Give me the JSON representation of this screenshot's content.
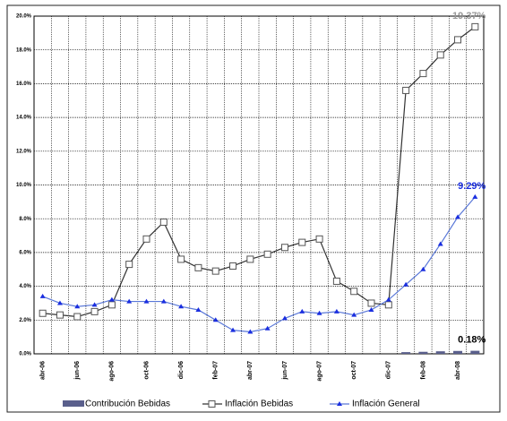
{
  "chart_data": {
    "type": "line",
    "categories": [
      "abr-06",
      null,
      "jun-06",
      null,
      "ago-06",
      null,
      "oct-06",
      null,
      "dic-06",
      null,
      "feb-07",
      null,
      "abr-07",
      null,
      "jun-07",
      null,
      "ago-07",
      null,
      "oct-07",
      null,
      "dic-07",
      null,
      "feb-08",
      null,
      "abr-08",
      null
    ],
    "series": [
      {
        "name": "Contribución Bebidas",
        "type": "bar",
        "color": "#5a5f8c",
        "label_color": "#000000",
        "values": [
          0,
          0,
          0,
          0,
          0,
          0,
          0,
          0,
          0,
          0,
          0,
          0,
          0,
          0,
          0,
          0,
          0,
          0,
          0,
          0,
          0,
          0.1,
          0.12,
          0.15,
          0.17,
          0.18
        ],
        "value_labels": [
          null,
          null,
          null,
          null,
          null,
          null,
          null,
          null,
          null,
          null,
          null,
          null,
          null,
          null,
          null,
          null,
          null,
          null,
          null,
          null,
          null,
          null,
          null,
          null,
          null,
          "0.18%"
        ]
      },
      {
        "name": "Inflación Bebidas",
        "type": "line",
        "marker": "square",
        "color": "#333333",
        "label_color": "#999999",
        "values": [
          2.4,
          2.3,
          2.2,
          2.5,
          2.9,
          5.3,
          6.8,
          7.8,
          5.6,
          5.1,
          4.9,
          5.2,
          5.6,
          5.9,
          6.3,
          6.6,
          6.8,
          4.3,
          3.7,
          3.0,
          2.9,
          15.6,
          16.6,
          17.7,
          18.6,
          19.37
        ],
        "value_labels": [
          null,
          null,
          null,
          null,
          null,
          null,
          null,
          null,
          null,
          null,
          null,
          null,
          null,
          null,
          null,
          null,
          null,
          null,
          null,
          null,
          null,
          null,
          null,
          null,
          null,
          "19.37%"
        ]
      },
      {
        "name": "Inflación General",
        "type": "line",
        "marker": "triangle",
        "color": "#5a78d8",
        "label_color": "#1a2ee0",
        "values": [
          3.4,
          3.0,
          2.8,
          2.9,
          3.2,
          3.1,
          3.1,
          3.1,
          2.8,
          2.6,
          2.0,
          1.4,
          1.3,
          1.5,
          2.1,
          2.5,
          2.4,
          2.5,
          2.3,
          2.6,
          3.2,
          4.1,
          5.0,
          6.5,
          8.1,
          9.29
        ],
        "value_labels": [
          null,
          null,
          null,
          null,
          null,
          null,
          null,
          null,
          null,
          null,
          null,
          null,
          null,
          null,
          null,
          null,
          null,
          null,
          null,
          null,
          null,
          null,
          null,
          null,
          null,
          "9.29%"
        ]
      }
    ],
    "ylim": [
      0,
      20
    ],
    "yticks": [
      {
        "value": 0,
        "label": "0.0%"
      },
      {
        "value": 2,
        "label": "2.0%"
      },
      {
        "value": 4,
        "label": "4.0%"
      },
      {
        "value": 6,
        "label": "6.0%"
      },
      {
        "value": 8,
        "label": "8.0%"
      },
      {
        "value": 10,
        "label": "10.0%"
      },
      {
        "value": 12,
        "label": "12.0%"
      },
      {
        "value": 14,
        "label": "14.0%"
      },
      {
        "value": 16,
        "label": "16.0%"
      },
      {
        "value": 18,
        "label": "18.0%"
      },
      {
        "value": 20,
        "label": "20.0%"
      }
    ],
    "grid": true,
    "legend": "bottom"
  }
}
